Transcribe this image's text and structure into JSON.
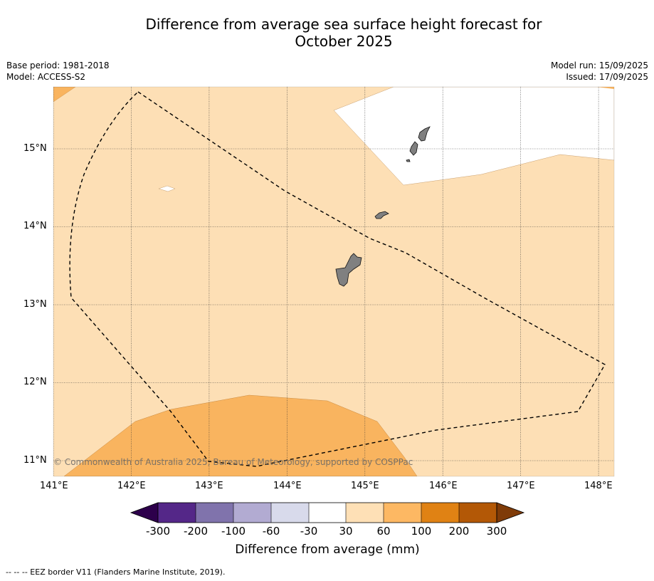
{
  "title": {
    "line1": "Difference from average sea surface height forecast for",
    "line2": "October 2025"
  },
  "meta": {
    "base_period": "Base period: 1981-2018",
    "model": "Model: ACCESS-S2",
    "model_run": "Model run: 15/09/2025",
    "issued": "Issued: 17/09/2025"
  },
  "map": {
    "lon_labels": [
      "141°E",
      "142°E",
      "143°E",
      "144°E",
      "145°E",
      "146°E",
      "147°E",
      "148°E"
    ],
    "lat_labels": [
      "15°N",
      "14°N",
      "13°N",
      "12°N",
      "11°N"
    ],
    "credit": "© Commonwealth of Australia 2025, Bureau of Meteorology, supported by COSPPac",
    "colors": {
      "c30_60": "#fddfb5",
      "c60_100": "#f9b45f",
      "c_neutral": "#ffffff",
      "land": "#808080",
      "eez": "#000000"
    }
  },
  "colorbar": {
    "ticks": [
      "-300",
      "-200",
      "-100",
      "-60",
      "-30",
      "30",
      "60",
      "100",
      "200",
      "300"
    ],
    "colors": [
      "#2d004b",
      "#542788",
      "#8073ac",
      "#b2abd2",
      "#d8daeb",
      "#ffffff",
      "#fee0b6",
      "#fdb863",
      "#e08214",
      "#b35806",
      "#7f3b08"
    ],
    "label": "Difference from average (mm)"
  },
  "footnote": "--  --  -- EEZ border V11 (Flanders Marine Institute, 2019)."
}
